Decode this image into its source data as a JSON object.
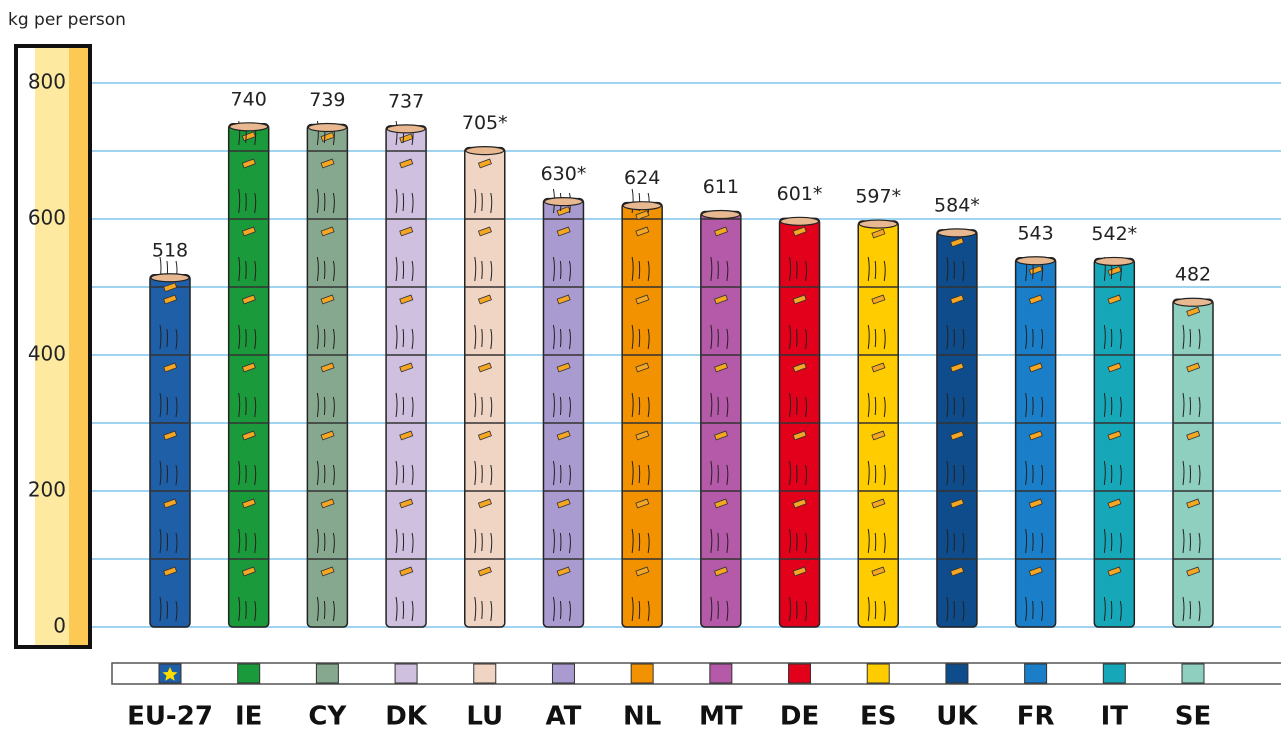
{
  "chart_data": {
    "type": "bar",
    "y_axis_label": "kg per person",
    "categories": [
      "EU-27",
      "IE",
      "CY",
      "DK",
      "LU",
      "AT",
      "NL",
      "MT",
      "DE",
      "ES",
      "UK",
      "FR",
      "IT",
      "SE"
    ],
    "values": [
      518,
      740,
      739,
      737,
      705,
      630,
      624,
      611,
      601,
      597,
      584,
      543,
      542,
      482
    ],
    "value_labels": [
      "518",
      "740",
      "739",
      "737",
      "705*",
      "630*",
      "624",
      "611",
      "601*",
      "597*",
      "584*",
      "543",
      "542*",
      "482"
    ],
    "colors": [
      "#1f5fa8",
      "#1a9a3a",
      "#86a88e",
      "#cfc0e0",
      "#f0d5c4",
      "#a99ad0",
      "#f39200",
      "#b45aa8",
      "#e2001a",
      "#ffcc00",
      "#0f4c8c",
      "#1a7fc8",
      "#16a8b8",
      "#8ecfc0"
    ],
    "ylim": [
      0,
      800
    ],
    "yticks": [
      0,
      200,
      400,
      600,
      800
    ],
    "minor_yticks": [
      100,
      300,
      500,
      700
    ],
    "grid": true
  }
}
